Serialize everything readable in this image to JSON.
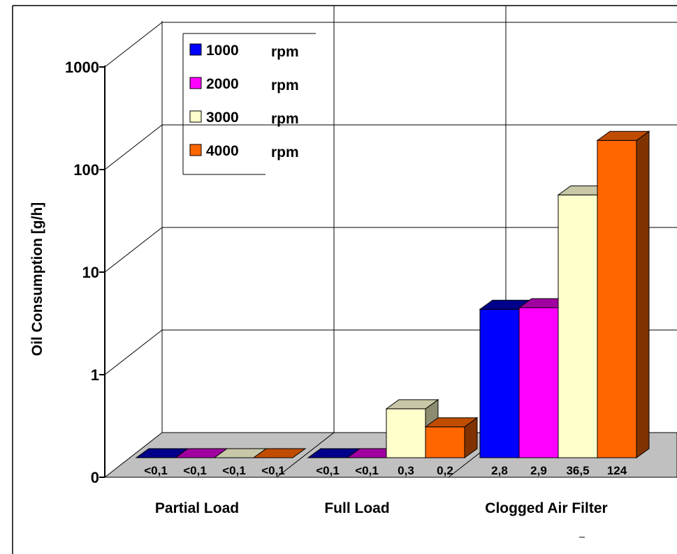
{
  "chart_data": {
    "type": "bar",
    "ylabel": "Oil Consumption [g/h]",
    "xlabel": "",
    "yscale": "log",
    "yticks": [
      "0",
      "1",
      "10",
      "100",
      "1000"
    ],
    "categories": [
      "Partial Load",
      "Full Load",
      "Clogged Air Filter"
    ],
    "series": [
      {
        "name": "1000",
        "unit": "rpm",
        "color": "#0000ff",
        "side": "#000080",
        "top": "#00008b",
        "values": [
          0.1,
          0.1,
          2.8
        ],
        "labels": [
          "<0,1",
          "<0,1",
          "2,8"
        ]
      },
      {
        "name": "2000",
        "unit": "rpm",
        "color": "#ff00ff",
        "side": "#800080",
        "top": "#a000a0",
        "values": [
          0.1,
          0.1,
          2.9
        ],
        "labels": [
          "<0,1",
          "<0,1",
          "2,9"
        ]
      },
      {
        "name": "3000",
        "unit": "rpm",
        "color": "#ffffcc",
        "side": "#8c8c70",
        "top": "#c8c8a8",
        "values": [
          0.1,
          0.3,
          36.5
        ],
        "labels": [
          "<0,1",
          "0,3",
          "36,5"
        ]
      },
      {
        "name": "4000",
        "unit": "rpm",
        "color": "#ff6600",
        "side": "#803300",
        "top": "#c04c00",
        "values": [
          0.1,
          0.2,
          124
        ],
        "labels": [
          "<0,1",
          "0,2",
          "124"
        ]
      }
    ],
    "grid": true,
    "legend": "top-left"
  }
}
